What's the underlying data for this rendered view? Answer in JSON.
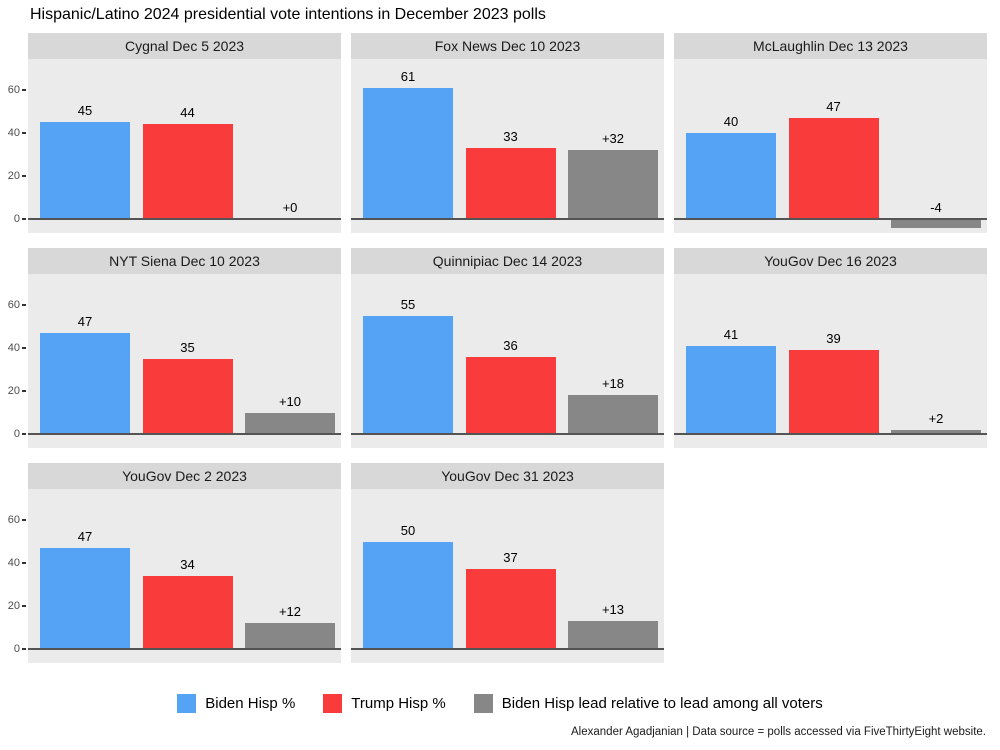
{
  "title": "Hispanic/Latino 2024 presidential vote intentions in December 2023 polls",
  "caption": "Alexander Agadjanian | Data source = polls accessed via FiveThirtyEight website.",
  "colors": {
    "biden": "#55a3f5",
    "trump": "#f93b3b",
    "lead": "#878787",
    "panel_bg": "#ebebeb",
    "strip_bg": "#d8d8d8",
    "zero_line": "#545454",
    "axis_text": "#4d4d4d"
  },
  "legend": [
    {
      "label": "Biden Hisp %",
      "color_key": "biden"
    },
    {
      "label": "Trump Hisp %",
      "color_key": "trump"
    },
    {
      "label": "Biden Hisp lead relative to lead among all voters",
      "color_key": "lead"
    }
  ],
  "y_axis": {
    "ticks": [
      0,
      20,
      40,
      60
    ]
  },
  "chart_data": {
    "type": "bar",
    "series_names": [
      "Biden Hisp %",
      "Trump Hisp %",
      "Biden Hisp lead relative to lead among all voters"
    ],
    "facets": [
      {
        "title": "Cygnal Dec 5 2023",
        "values": [
          45,
          44,
          0
        ],
        "labels": [
          "45",
          "44",
          "+0"
        ]
      },
      {
        "title": "Fox News Dec 10 2023",
        "values": [
          61,
          33,
          32
        ],
        "labels": [
          "61",
          "33",
          "+32"
        ]
      },
      {
        "title": "McLaughlin Dec 13 2023",
        "values": [
          40,
          47,
          -4
        ],
        "labels": [
          "40",
          "47",
          "-4"
        ]
      },
      {
        "title": "NYT Siena Dec 10 2023",
        "values": [
          47,
          35,
          10
        ],
        "labels": [
          "47",
          "35",
          "+10"
        ]
      },
      {
        "title": "Quinnipiac Dec 14 2023",
        "values": [
          55,
          36,
          18
        ],
        "labels": [
          "55",
          "36",
          "+18"
        ]
      },
      {
        "title": "YouGov Dec 16 2023",
        "values": [
          41,
          39,
          2
        ],
        "labels": [
          "41",
          "39",
          "+2"
        ]
      },
      {
        "title": "YouGov Dec 2 2023",
        "values": [
          47,
          34,
          12
        ],
        "labels": [
          "47",
          "34",
          "+12"
        ]
      },
      {
        "title": "YouGov Dec 31 2023",
        "values": [
          50,
          37,
          13
        ],
        "labels": [
          "50",
          "37",
          "+13"
        ]
      }
    ],
    "ylim": [
      -7,
      75
    ],
    "grid": false,
    "legend_position": "bottom",
    "facet_columns": 3
  }
}
